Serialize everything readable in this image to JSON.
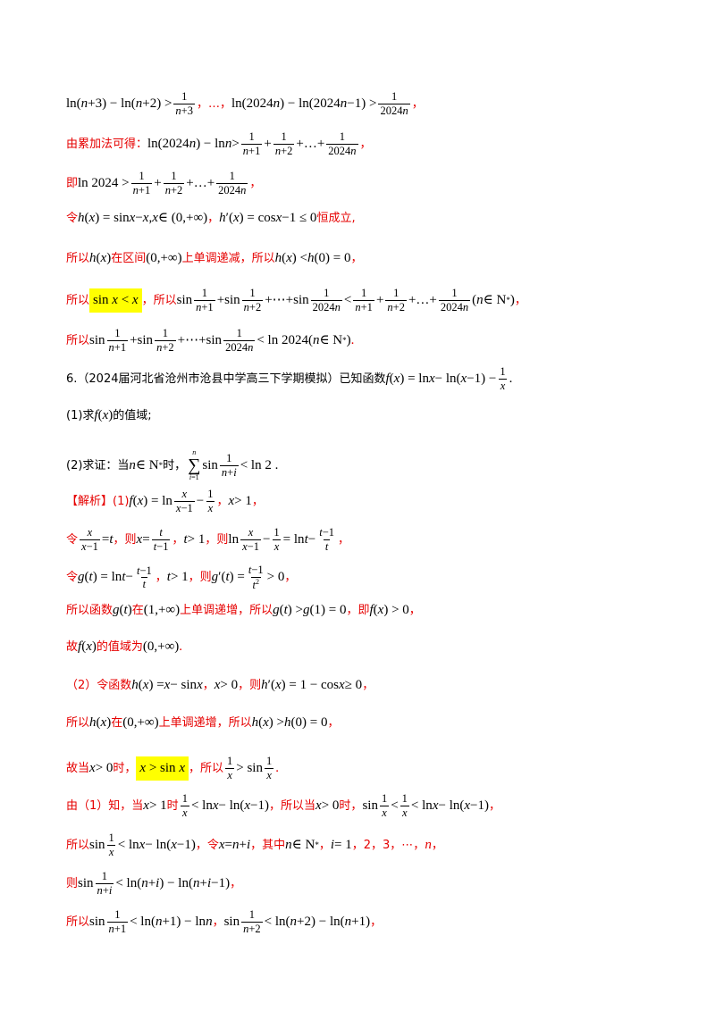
{
  "lines": [
    {
      "text": "ln(n+3) − ln(n+2) > 1/(n+3) , … , ln(2024n) − ln(2024n−1) > 1/(2024n) ,"
    },
    {
      "text": "由累加法可得： ln(2024n) − ln n > 1/(n+1) + 1/(n+2) + … + 1/(2024n) ,"
    },
    {
      "text": "即 ln 2024 > 1/(n+1) + 1/(n+2) + … + 1/(2024n) ,"
    },
    {
      "text": "令 h(x) = sin x − x, x ∈ (0,+∞)， h′(x) = cos x −1 ≤ 0 恒成立,"
    },
    {
      "text": "所以 h(x) 在区间 (0,+∞) 上单调递减，所以 h(x) < h(0) = 0 ,"
    },
    {
      "text": "所以 sin x < x ，所以 sin 1/(n+1) + sin 1/(n+2) + ⋯ + sin 1/(2024n) < 1/(n+1) + 1/(n+2) + … + 1/(2024n) (n ∈ N*) ,"
    },
    {
      "text": "所以 sin 1/(n+1) + sin 1/(n+2) + ⋯ + sin 1/(2024n) < ln 2024 (n ∈ N*) ."
    },
    {
      "text": "6.（2024届河北省沧州市沧县中学高三下学期模拟）已知函数 f(x) = ln x − ln(x−1) − 1/x ."
    },
    {
      "text": "(1)求 f(x) 的值域;"
    },
    {
      "text": "(2)求证：当 n ∈ N* 时， Σ_{i=1}^{n} sin 1/(n+i) < ln 2 ."
    },
    {
      "text": "【解析】(1) f(x) = ln x/(x−1) − 1/x ， x > 1 ,"
    },
    {
      "text": "令 x/(x−1) = t ，则 x = t/(t−1) ， t > 1 ，则 ln x/(x−1) − 1/x = ln t − (t−1)/t ,"
    },
    {
      "text": "令 g(t) = ln t − (t−1)/t ， t > 1 ，则 g′(t) = (t−1)/t² > 0 ,"
    },
    {
      "text": "所以函数 g(t) 在 (1,+∞) 上单调递增，所以 g(t) > g(1) = 0 ，即 f(x) > 0 ,"
    },
    {
      "text": "故 f(x) 的值域为 (0,+∞) ."
    },
    {
      "text": "（2）令函数 h(x) = x − sin x ， x > 0 ，则 h′(x) = 1 − cos x ≥ 0 ,"
    },
    {
      "text": "所以 h(x) 在 (0,+∞) 上单调递增，所以 h(x) > h(0) = 0 ,"
    },
    {
      "text": "故当 x > 0 时， x > sin x ，所以 1/x > sin 1/x ."
    },
    {
      "text": "由（1）知，当 x > 1 时 1/x < ln x − ln(x−1) ，所以当 x > 0 时， sin 1/x < 1/x < ln x − ln(x−1) ,"
    },
    {
      "text": "所以 sin 1/x < ln x − ln(x−1) ，令 x = n + i ，其中 n ∈ N* ， i = 1，2，3，⋯，n ,"
    },
    {
      "text": "则 sin 1/(n+i) < ln(n+i) − ln(n+i−1) ,"
    },
    {
      "text": "所以 sin 1/(n+1) < ln(n+1) − ln n ， sin 1/(n+2) < ln(n+2) − ln(n+1) ,"
    }
  ]
}
